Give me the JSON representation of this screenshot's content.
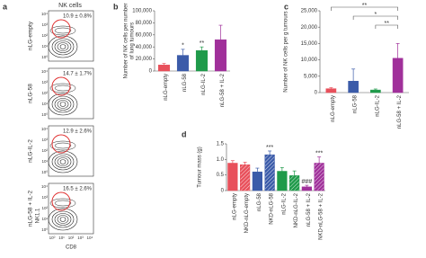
{
  "flow_panel": {
    "panel_label": "a",
    "title": "NK cells",
    "y_label": "NK1.1",
    "x_label": "CD8",
    "ticks": [
      "10⁰",
      "10¹",
      "10²",
      "10³",
      "10⁴"
    ],
    "rows": [
      {
        "label": "nLG-empty",
        "percent": "10.9 ± 0.8%"
      },
      {
        "label": "nLG-58",
        "percent": "14.7 ± 1.7%"
      },
      {
        "label": "nLG-IL-2",
        "percent": "12.9 ± 2.6%"
      },
      {
        "label": "nLG-58 + IL-2",
        "percent": "16.5 ± 2.6%"
      }
    ]
  },
  "chart_data": [
    {
      "type": "bar",
      "panel_label": "b",
      "y_label": [
        "Number of NK cells per number",
        "of lung tumours"
      ],
      "categories": [
        "nLG-empty",
        "nLG-58",
        "nLG-IL-2",
        "nLG-58 + IL-2"
      ],
      "values": [
        10000,
        26000,
        34000,
        52000
      ],
      "errors": [
        2500,
        10000,
        6000,
        24000
      ],
      "colors": [
        "#e8505b",
        "#3b5ba9",
        "#1f9a4a",
        "#a0309a"
      ],
      "significance": [
        null,
        "*",
        "**",
        null
      ],
      "ylim": [
        0,
        100000
      ],
      "yticks": [
        0,
        {
          "value": 20000,
          "label": "20,000"
        },
        {
          "value": 40000,
          "label": "40,000"
        },
        {
          "value": 60000,
          "label": "60,000"
        },
        {
          "value": 80000,
          "label": "80,000"
        },
        {
          "value": 100000,
          "label": "100,000"
        }
      ]
    },
    {
      "type": "bar",
      "panel_label": "c",
      "y_label": [
        "Number of NK cells per g tumours"
      ],
      "categories": [
        "nLG-empty",
        "nLG-58",
        "nLG-IL-2",
        "nLG-58 + IL-2"
      ],
      "values": [
        1200,
        3500,
        800,
        10500
      ],
      "errors": [
        300,
        3700,
        300,
        4500
      ],
      "colors": [
        "#e8505b",
        "#3b5ba9",
        "#1f9a4a",
        "#a0309a"
      ],
      "comparisons": [
        "**",
        "*",
        "**"
      ],
      "ylim": [
        0,
        25000
      ],
      "yticks": [
        0,
        {
          "value": 5000,
          "label": "5,000"
        },
        {
          "value": 10000,
          "label": "10,000"
        },
        {
          "value": 15000,
          "label": "15,000"
        },
        {
          "value": 20000,
          "label": "20,000"
        },
        {
          "value": 25000,
          "label": "25,000"
        }
      ]
    },
    {
      "type": "bar",
      "panel_label": "d",
      "y_label": [
        "Tumour mass (g)"
      ],
      "categories": [
        "nLG-empty",
        "NKD-nLG-empty",
        "nLG-58",
        "NKD-nLG-58",
        "nLG-IL-2",
        "NKD-nLG-IL-2",
        "nLG-58 + IL-2",
        "NKD-nLG-58 + IL-2"
      ],
      "values": [
        0.88,
        0.83,
        0.6,
        1.15,
        0.62,
        0.48,
        0.12,
        0.88
      ],
      "errors": [
        0.08,
        0.08,
        0.12,
        0.12,
        0.12,
        0.15,
        0.05,
        0.2
      ],
      "colors": [
        "#e8505b",
        "#e8505b",
        "#3b5ba9",
        "#3b5ba9",
        "#1f9a4a",
        "#1f9a4a",
        "#a0309a",
        "#a0309a"
      ],
      "hatch": [
        false,
        true,
        false,
        true,
        false,
        true,
        false,
        true
      ],
      "significance": [
        null,
        null,
        null,
        "***",
        null,
        null,
        "###",
        "***"
      ],
      "ylim": [
        0,
        1.5
      ],
      "yticks": [
        0,
        0.5,
        {
          "value": 1,
          "label": "1.0"
        },
        1.5
      ]
    }
  ]
}
